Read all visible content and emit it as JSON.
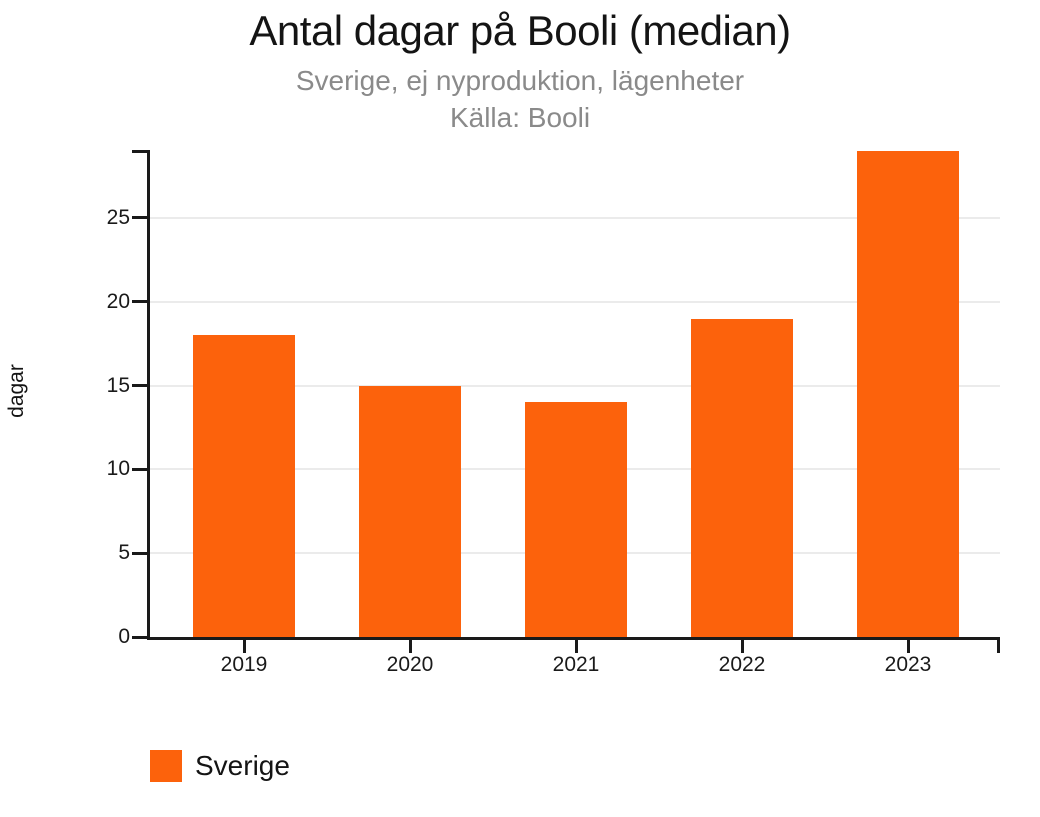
{
  "title": "Antal dagar på Booli (median)",
  "subtitle": "Sverige, ej nyproduktion, lägenheter",
  "source": "Källa: Booli",
  "legend": {
    "items": [
      {
        "label": "Sverige",
        "color": "#FC620C"
      }
    ]
  },
  "colors": {
    "bar": "#FC620C",
    "axis": "#1a1a1a",
    "grid": "#ebebeb",
    "title_text": "#141414",
    "subtitle_text": "#8a8a8a"
  },
  "chart_data": {
    "type": "bar",
    "categories": [
      "2019",
      "2020",
      "2021",
      "2022",
      "2023"
    ],
    "series": [
      {
        "name": "Sverige",
        "values": [
          18,
          15,
          14,
          19,
          29
        ]
      }
    ],
    "title": "Antal dagar på Booli (median)",
    "subtitle": "Sverige, ej nyproduktion, lägenheter",
    "source_note": "Källa: Booli",
    "xlabel": "",
    "ylabel": "dagar",
    "ylim": [
      0,
      29.05
    ],
    "yticks": [
      0,
      5,
      10,
      15,
      20,
      25
    ],
    "grid": true,
    "legend_position": "bottom-left",
    "bar_color": "#FC620C"
  }
}
